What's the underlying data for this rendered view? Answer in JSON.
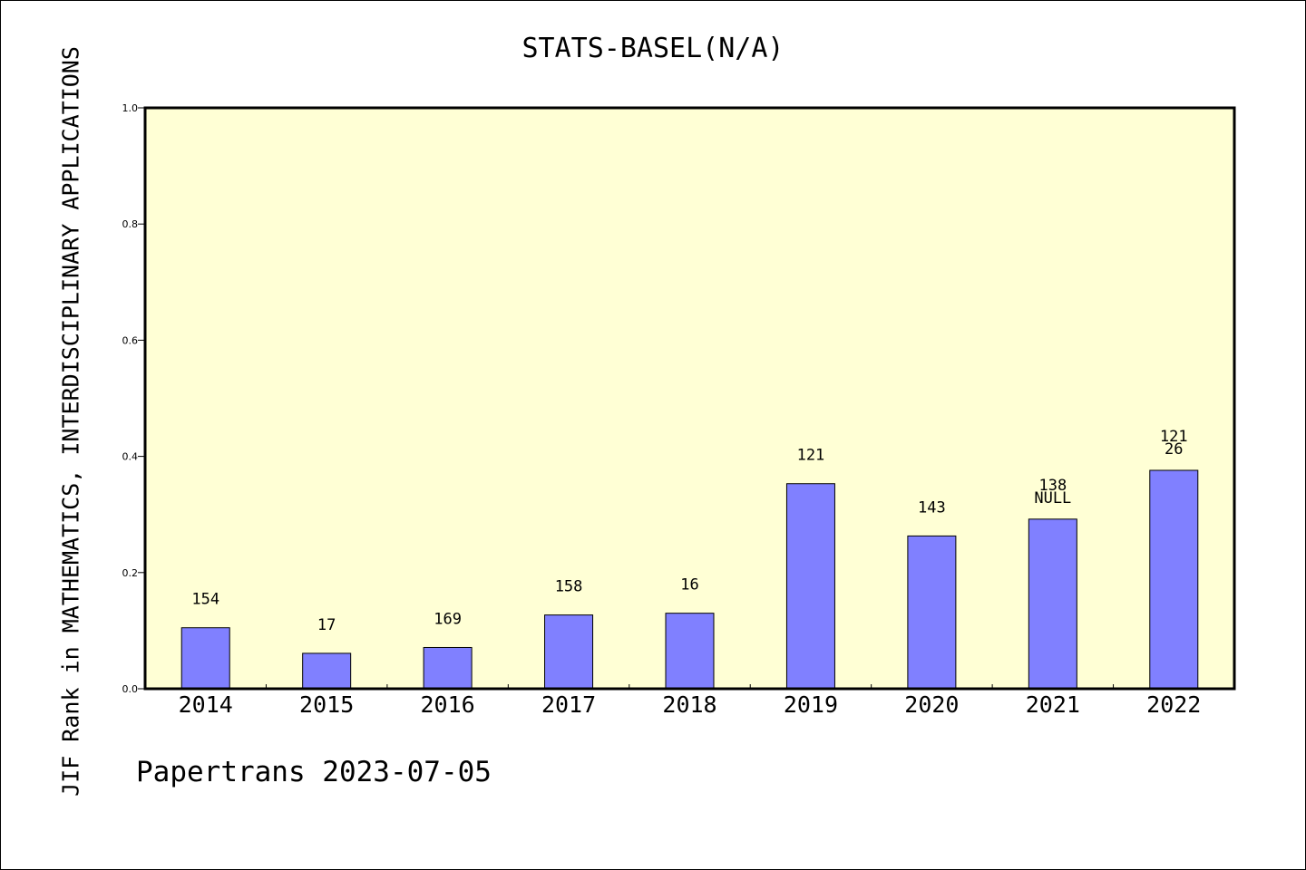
{
  "title": "STATS-BASEL(N/A)",
  "footer": "Papertrans 2023-07-05",
  "colors": {
    "plot_background": "#ffffd5",
    "bar_fill": "#8080ff",
    "bar_stroke": "#000000",
    "text": "#000000"
  },
  "chart_data": {
    "type": "bar",
    "title": "STATS-BASEL(N/A)",
    "xlabel": "",
    "ylabel": "JIF Rank in MATHEMATICS,  INTERDISCIPLINARY APPLICATIONS",
    "ylim": [
      0,
      1.0
    ],
    "yticks": [
      "0.0",
      "0.2",
      "0.4",
      "0.6",
      "0.8",
      "1.0"
    ],
    "grid": false,
    "categories": [
      "2014",
      "2015",
      "2016",
      "2017",
      "2018",
      "2019",
      "2020",
      "2021",
      "2022"
    ],
    "values": [
      0.105,
      0.061,
      0.071,
      0.127,
      0.13,
      0.353,
      0.263,
      0.292,
      0.376
    ],
    "labels": [
      [
        "154"
      ],
      [
        "17"
      ],
      [
        "169"
      ],
      [
        "158"
      ],
      [
        "16"
      ],
      [
        "121"
      ],
      [
        "143"
      ],
      [
        "138",
        "NULL"
      ],
      [
        "121",
        "26"
      ]
    ]
  }
}
